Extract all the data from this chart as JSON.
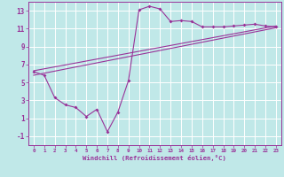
{
  "xlabel": "Windchill (Refroidissement éolien,°C)",
  "bg_color": "#c0e8e8",
  "grid_color": "#ffffff",
  "line_color": "#993399",
  "xlim": [
    -0.5,
    23.5
  ],
  "ylim": [
    -2.0,
    14.0
  ],
  "xticks": [
    0,
    1,
    2,
    3,
    4,
    5,
    6,
    7,
    8,
    9,
    10,
    11,
    12,
    13,
    14,
    15,
    16,
    17,
    18,
    19,
    20,
    21,
    22,
    23
  ],
  "yticks": [
    -1,
    1,
    3,
    5,
    7,
    9,
    11,
    13
  ],
  "curve_x": [
    0,
    1,
    2,
    3,
    4,
    5,
    6,
    7,
    8,
    9,
    10,
    11,
    12,
    13,
    14,
    15,
    16,
    17,
    18,
    19,
    20,
    21,
    22,
    23
  ],
  "curve_y": [
    6.2,
    5.8,
    3.3,
    2.5,
    2.2,
    1.2,
    2.0,
    -0.5,
    1.7,
    5.2,
    13.1,
    13.5,
    13.2,
    11.8,
    11.9,
    11.8,
    11.2,
    11.2,
    11.2,
    11.3,
    11.4,
    11.5,
    11.3,
    11.2
  ],
  "line1_x": [
    0,
    23
  ],
  "line1_y": [
    5.8,
    11.1
  ],
  "line2_x": [
    0,
    23
  ],
  "line2_y": [
    6.3,
    11.3
  ]
}
